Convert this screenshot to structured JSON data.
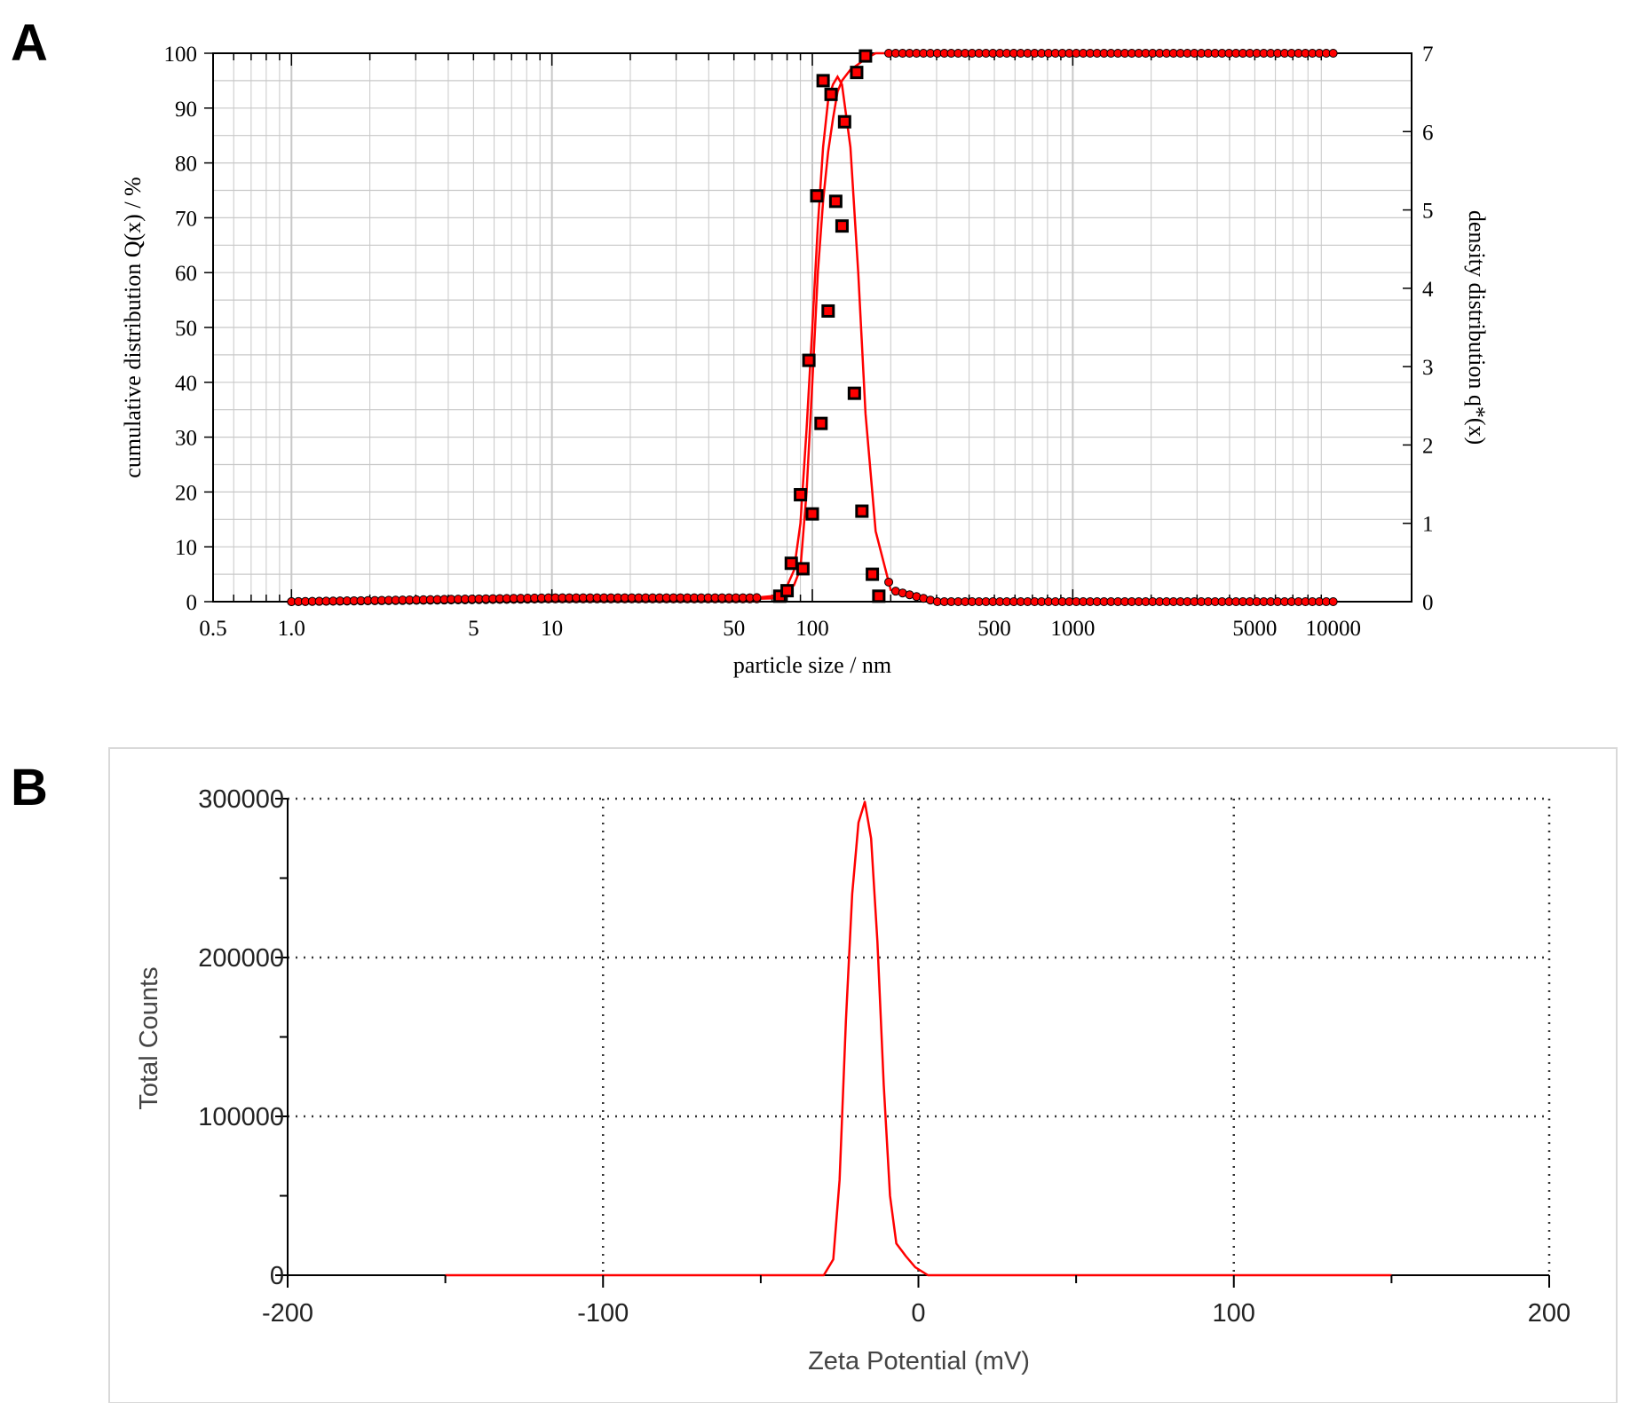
{
  "figure": {
    "panel_a_label": "A",
    "panel_b_label": "B"
  },
  "colors": {
    "series": "#ff0000",
    "marker_border": "#000000",
    "grid_a": "#c8c8c8",
    "grid_b": "#333333",
    "axis": "#000000"
  },
  "chart_data": [
    {
      "id": "A",
      "type": "line",
      "xscale": "log",
      "xlim": [
        0.5,
        20000
      ],
      "ylim": [
        0,
        100
      ],
      "y2lim": [
        0,
        7
      ],
      "grid": true,
      "xlabel": "particle size / nm",
      "ylabel": "cumulative distribution Q(x) / %",
      "y2label": "density distribution q*(x)",
      "x_tick_labels": [
        "0.5",
        "1.0",
        "5",
        "10",
        "50",
        "100",
        "500",
        "1000",
        "5000",
        "10000"
      ],
      "y_tick_labels": [
        "0",
        "10",
        "20",
        "30",
        "40",
        "50",
        "60",
        "70",
        "80",
        "90",
        "100"
      ],
      "y2_tick_labels": [
        "0",
        "1",
        "2",
        "3",
        "4",
        "5",
        "6",
        "7"
      ],
      "series": [
        {
          "axis": "left",
          "x": [
            1.0,
            10,
            60,
            70,
            75,
            80,
            85,
            90,
            95,
            100,
            105,
            110,
            115,
            120,
            125,
            130,
            140,
            150,
            160,
            175,
            200,
            300,
            1000,
            10000
          ],
          "y": [
            0,
            0.5,
            0.5,
            0.6,
            1,
            2,
            3,
            6,
            20,
            40,
            60,
            73,
            82,
            88,
            93,
            95,
            97,
            98,
            99,
            100,
            100,
            100,
            100,
            100
          ]
        },
        {
          "axis": "right",
          "x": [
            1.0,
            10,
            60,
            70,
            75,
            80,
            85,
            90,
            95,
            100,
            105,
            110,
            115,
            120,
            125,
            130,
            140,
            150,
            160,
            175,
            200,
            300,
            1000,
            10000
          ],
          "y": [
            0,
            0.05,
            0.05,
            0.07,
            0.1,
            0.2,
            0.4,
            1.0,
            2.2,
            3.5,
            4.8,
            5.8,
            6.4,
            6.6,
            6.7,
            6.6,
            5.8,
            4.2,
            2.4,
            0.9,
            0.15,
            0,
            0,
            0
          ]
        }
      ],
      "markers": [
        {
          "x": 75,
          "y": 1
        },
        {
          "x": 80,
          "y": 2
        },
        {
          "x": 83,
          "y": 7
        },
        {
          "x": 90,
          "y": 19.5
        },
        {
          "x": 92,
          "y": 6
        },
        {
          "x": 97,
          "y": 44
        },
        {
          "x": 100,
          "y": 16
        },
        {
          "x": 104,
          "y": 74
        },
        {
          "x": 108,
          "y": 32.5
        },
        {
          "x": 110,
          "y": 95
        },
        {
          "x": 115,
          "y": 53
        },
        {
          "x": 118,
          "y": 92.5
        },
        {
          "x": 123,
          "y": 73
        },
        {
          "x": 130,
          "y": 68.5
        },
        {
          "x": 133,
          "y": 87.5
        },
        {
          "x": 145,
          "y": 38
        },
        {
          "x": 148,
          "y": 96.5
        },
        {
          "x": 155,
          "y": 16.5
        },
        {
          "x": 160,
          "y": 99.5
        },
        {
          "x": 170,
          "y": 5
        },
        {
          "x": 180,
          "y": 1
        }
      ]
    },
    {
      "id": "B",
      "type": "line",
      "xlim": [
        -200,
        200
      ],
      "ylim": [
        0,
        300000
      ],
      "grid": true,
      "grid_style": "dotted",
      "xlabel": "Zeta Potential (mV)",
      "ylabel": "Total Counts",
      "x_tick_labels": [
        "-200",
        "-100",
        "0",
        "100",
        "200"
      ],
      "y_tick_labels": [
        "0",
        "100000",
        "200000",
        "300000"
      ],
      "series": [
        {
          "x": [
            -150,
            -30,
            -27,
            -25,
            -23,
            -21,
            -19,
            -17,
            -15,
            -13,
            -11,
            -9,
            -7,
            -4,
            -1,
            3,
            150
          ],
          "y": [
            0,
            0,
            10000,
            60000,
            160000,
            240000,
            285000,
            298000,
            275000,
            210000,
            120000,
            50000,
            20000,
            12000,
            5000,
            0,
            0
          ]
        }
      ]
    }
  ]
}
